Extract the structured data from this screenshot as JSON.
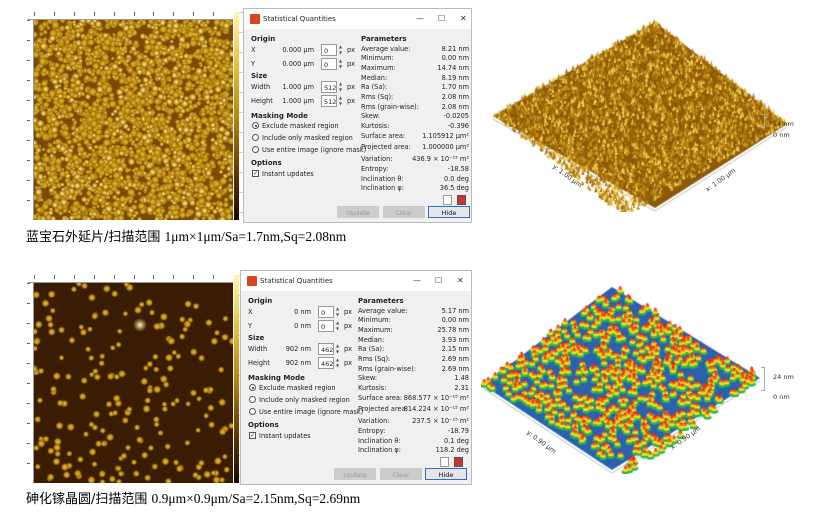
{
  "panels": [
    {
      "id": "sapphire",
      "caption_cn": "蓝宝石外延片/扫描范围 ",
      "caption_num": "1μm×1μm/Sa=1.7nm,Sq=2.08nm",
      "colormap": [
        "#1a0a00",
        "#6b3a00",
        "#b8860b",
        "#e8c040",
        "#fff8b0"
      ],
      "surface_style": "gold-dense",
      "view3d": {
        "z_max": "14 nm",
        "z_min": "0 nm",
        "x_label": "x: 1.00 µm",
        "y_label": "y: 1.00 µm"
      },
      "dialog": {
        "title": "Statistical Quantities",
        "origin_header": "Origin",
        "x_label": "X",
        "x_value": "0.000 µm",
        "x_px": "0",
        "y_label": "Y",
        "y_value": "0.000 µm",
        "y_px": "0",
        "size_header": "Size",
        "width_label": "Width",
        "width_value": "1.000 µm",
        "width_px": "512",
        "height_label": "Height",
        "height_value": "1.000 µm",
        "height_px": "512",
        "px_unit": "px",
        "masking_header": "Masking Mode",
        "mask_options": [
          "Exclude masked region",
          "Include only masked region",
          "Use entire image (ignore mask)"
        ],
        "mask_selected": 0,
        "options_header": "Options",
        "instant_updates": "Instant updates",
        "instant_checked": true,
        "parameters_header": "Parameters",
        "parameters": [
          {
            "label": "Average value:",
            "value": "8.21 nm"
          },
          {
            "label": "Minimum:",
            "value": "0.00 nm"
          },
          {
            "label": "Maximum:",
            "value": "14.74 nm"
          },
          {
            "label": "Median:",
            "value": "8.19 nm"
          },
          {
            "label": "Ra (Sa):",
            "value": "1.70 nm"
          },
          {
            "label": "Rms (Sq):",
            "value": "2.08 nm"
          },
          {
            "label": "Rms (grain-wise):",
            "value": "2.08 nm"
          },
          {
            "label": "Skew:",
            "value": "-0.0205"
          },
          {
            "label": "Kurtosis:",
            "value": "-0.396"
          },
          {
            "label": "Surface area:",
            "value": "1.105912 µm²"
          },
          {
            "label": "Projected area:",
            "value": "1.000000 µm²"
          },
          {
            "label": "Variation:",
            "value": "436.9 × 10⁻¹⁵ m²"
          },
          {
            "label": "Entropy:",
            "value": "-18.58"
          },
          {
            "label": "Inclination θ:",
            "value": "0.0 deg"
          },
          {
            "label": "Inclination φ:",
            "value": "36.5 deg"
          }
        ],
        "update_label": "Update",
        "clear_label": "Clear",
        "hide_label": "Hide"
      }
    },
    {
      "id": "gaas",
      "caption_cn": "砷化镓晶圆/扫描范围 ",
      "caption_num": "0.9μm×0.9μm/Sa=2.15nm,Sq=2.69nm",
      "colormap": [
        "#1a0a00",
        "#6b3a00",
        "#b8860b",
        "#e8c040",
        "#fff8b0"
      ],
      "surface_style": "rainbow-sparse",
      "view3d": {
        "z_max": "24 nm",
        "z_min": "0 nm",
        "x_label": "x: 0.90 µm",
        "y_label": "y: 0.90 µm"
      },
      "dialog": {
        "title": "Statistical Quantities",
        "origin_header": "Origin",
        "x_label": "X",
        "x_value": "0 nm",
        "x_px": "0",
        "y_label": "Y",
        "y_value": "0 nm",
        "y_px": "0",
        "size_header": "Size",
        "width_label": "Width",
        "width_value": "902 nm",
        "width_px": "462",
        "height_label": "Height",
        "height_value": "902 nm",
        "height_px": "462",
        "px_unit": "px",
        "masking_header": "Masking Mode",
        "mask_options": [
          "Exclude masked region",
          "Include only masked region",
          "Use entire image (ignore mask)"
        ],
        "mask_selected": 0,
        "options_header": "Options",
        "instant_updates": "Instant updates",
        "instant_checked": true,
        "parameters_header": "Parameters",
        "parameters": [
          {
            "label": "Average value:",
            "value": "5.17 nm"
          },
          {
            "label": "Minimum:",
            "value": "0.00 nm"
          },
          {
            "label": "Maximum:",
            "value": "25.78 nm"
          },
          {
            "label": "Median:",
            "value": "3.93 nm"
          },
          {
            "label": "Ra (Sa):",
            "value": "2.15 nm"
          },
          {
            "label": "Rms (Sq):",
            "value": "2.69 nm"
          },
          {
            "label": "Rms (grain-wise):",
            "value": "2.69 nm"
          },
          {
            "label": "Skew:",
            "value": "1.48"
          },
          {
            "label": "Kurtosis:",
            "value": "2.31"
          },
          {
            "label": "Surface area:",
            "value": "868.577 × 10⁻¹⁵ m²"
          },
          {
            "label": "Projected area:",
            "value": "814.224 × 10⁻¹⁵ m²"
          },
          {
            "label": "Variation:",
            "value": "237.5 × 10⁻¹⁵ m²"
          },
          {
            "label": "Entropy:",
            "value": "-18.79"
          },
          {
            "label": "Inclination θ:",
            "value": "0.1 deg"
          },
          {
            "label": "Inclination φ:",
            "value": "118.2 deg"
          }
        ],
        "update_label": "Update",
        "clear_label": "Clear",
        "hide_label": "Hide"
      }
    }
  ]
}
